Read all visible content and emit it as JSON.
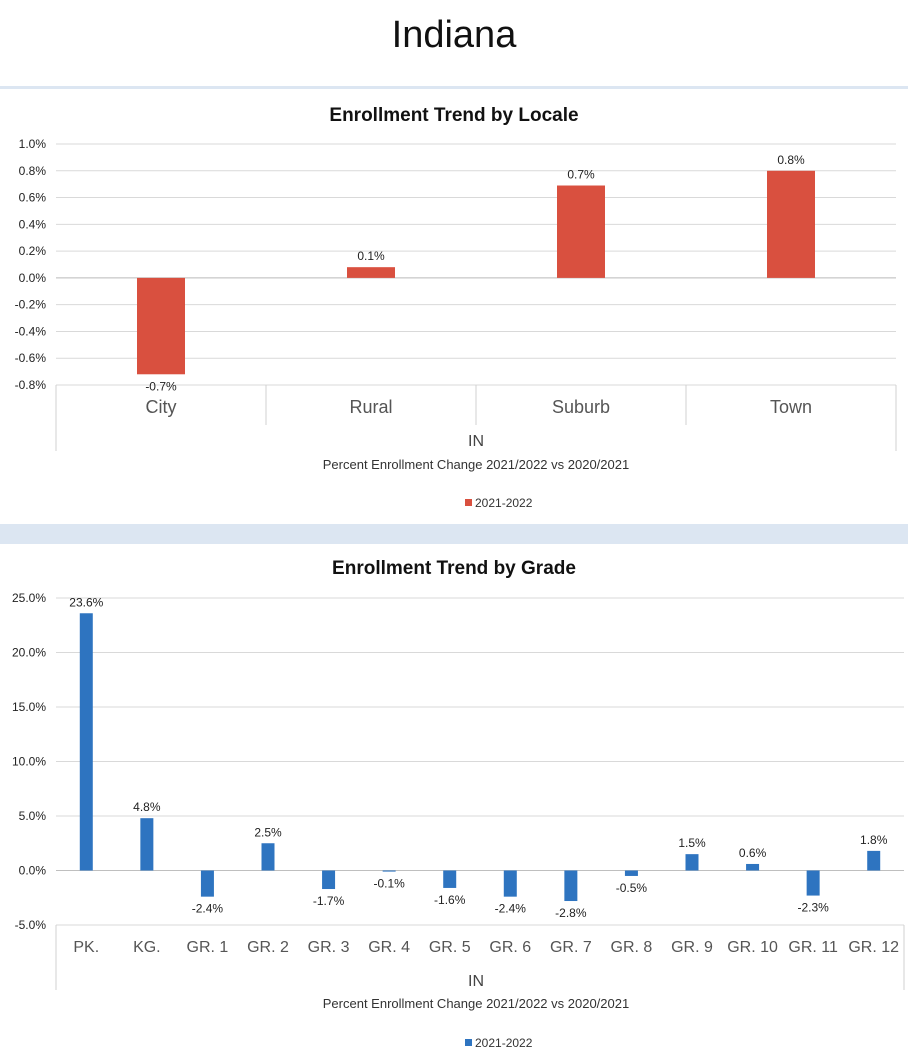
{
  "page": {
    "title": "Indiana"
  },
  "chart_data": [
    {
      "type": "bar",
      "title": "Enrollment Trend by Locale",
      "categories": [
        "City",
        "Rural",
        "Suburb",
        "Town"
      ],
      "series": [
        {
          "name": "2021-2022",
          "values": [
            -0.72,
            0.08,
            0.69,
            0.8
          ],
          "labels": [
            "-0.7%",
            "0.1%",
            "0.7%",
            "0.8%"
          ]
        }
      ],
      "ylim": [
        -0.8,
        1.0
      ],
      "yticks": [
        1.0,
        0.8,
        0.6,
        0.4,
        0.2,
        0.0,
        -0.2,
        -0.4,
        -0.6,
        -0.8
      ],
      "ytick_labels": [
        "1.0%",
        "0.8%",
        "0.6%",
        "0.4%",
        "0.2%",
        "0.0%",
        "-0.2%",
        "-0.4%",
        "-0.6%",
        "-0.8%"
      ],
      "xlabel": "IN",
      "subtitle": "Percent Enrollment Change 2021/2022 vs 2020/2021",
      "legend": "2021-2022",
      "color": "#d9503f"
    },
    {
      "type": "bar",
      "title": "Enrollment Trend by Grade",
      "categories": [
        "PK.",
        "KG.",
        "GR. 1",
        "GR. 2",
        "GR. 3",
        "GR. 4",
        "GR. 5",
        "GR. 6",
        "GR. 7",
        "GR. 8",
        "GR. 9",
        "GR. 10",
        "GR. 11",
        "GR. 12"
      ],
      "series": [
        {
          "name": "2021-2022",
          "values": [
            23.6,
            4.8,
            -2.4,
            2.5,
            -1.7,
            -0.1,
            -1.6,
            -2.4,
            -2.8,
            -0.5,
            1.5,
            0.6,
            -2.3,
            1.8
          ],
          "labels": [
            "23.6%",
            "4.8%",
            "-2.4%",
            "2.5%",
            "-1.7%",
            "-0.1%",
            "-1.6%",
            "-2.4%",
            "-2.8%",
            "-0.5%",
            "1.5%",
            "0.6%",
            "-2.3%",
            "1.8%"
          ]
        }
      ],
      "ylim": [
        -5,
        25
      ],
      "yticks": [
        25,
        20,
        15,
        10,
        5,
        0,
        -5
      ],
      "ytick_labels": [
        "25.0%",
        "20.0%",
        "15.0%",
        "10.0%",
        "5.0%",
        "0.0%",
        "-5.0%"
      ],
      "xlabel": "IN",
      "subtitle": "Percent Enrollment Change 2021/2022 vs 2020/2021",
      "legend": "2021-2022",
      "color": "#2e74c0"
    }
  ]
}
